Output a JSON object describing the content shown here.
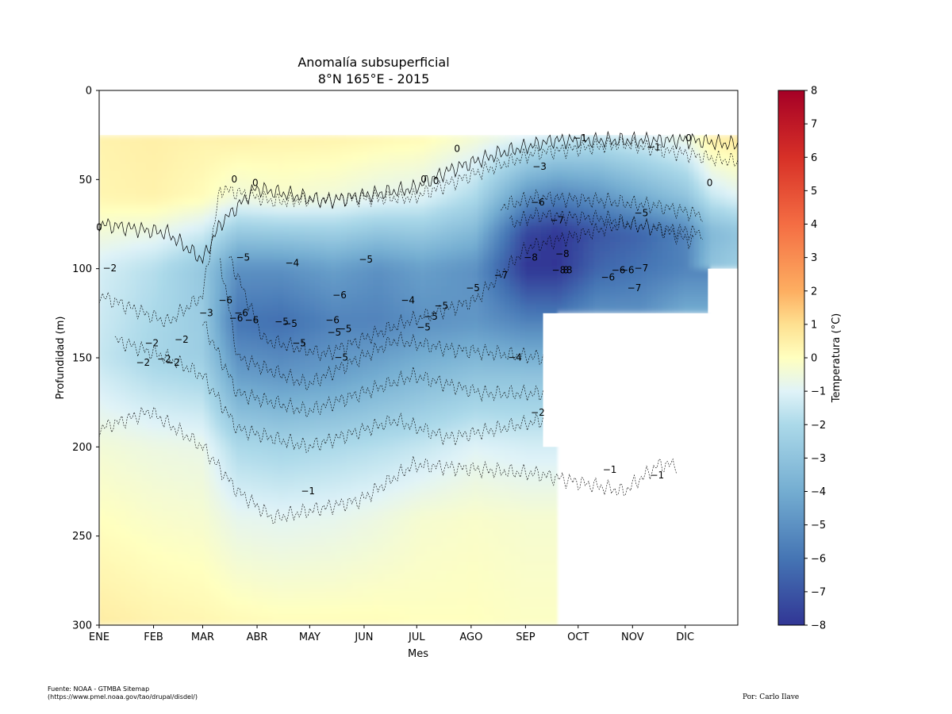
{
  "chart_data": {
    "type": "heatmap",
    "title": "Anomalía subsuperficial",
    "subtitle": "8°N 165°E - 2015",
    "xlabel": "Mes",
    "ylabel": "Profundidad (m)",
    "x_ticks": [
      "ENE",
      "FEB",
      "MAR",
      "ABR",
      "MAY",
      "JUN",
      "JUL",
      "AGO",
      "SEP",
      "OCT",
      "NOV",
      "DIC"
    ],
    "y_ticks": [
      0,
      50,
      100,
      150,
      200,
      250,
      300
    ],
    "ylim": [
      300,
      0
    ],
    "xlim_day": [
      1,
      365
    ],
    "colorbar": {
      "label": "Temperatura (°C)",
      "ticks": [
        8,
        7,
        6,
        5,
        4,
        3,
        2,
        1,
        0,
        -1,
        -2,
        -3,
        -4,
        -5,
        -6,
        -7,
        -8
      ],
      "vmin": -8,
      "vmax": 8,
      "colormap": "RdYlBu_r"
    },
    "field_profiles": [
      {
        "day": 1,
        "depth": [
          25,
          60,
          100,
          150,
          200,
          300
        ],
        "temp": [
          0.4,
          0.3,
          -1.2,
          -1.5,
          -0.4,
          0.6
        ]
      },
      {
        "day": 32,
        "depth": [
          25,
          60,
          100,
          150,
          200,
          300
        ],
        "temp": [
          0.5,
          0.4,
          -1.8,
          -2.2,
          -0.6,
          0.4
        ]
      },
      {
        "day": 60,
        "depth": [
          25,
          60,
          100,
          150,
          200,
          300
        ],
        "temp": [
          0.4,
          0.1,
          -2.8,
          -2.5,
          -0.7,
          0.3
        ]
      },
      {
        "day": 80,
        "depth": [
          25,
          60,
          100,
          130,
          160,
          200,
          240,
          300
        ],
        "temp": [
          0.5,
          -0.5,
          -5.0,
          -6.0,
          -4.5,
          -2.0,
          -0.8,
          0.2
        ]
      },
      {
        "day": 105,
        "depth": [
          25,
          60,
          100,
          130,
          160,
          200,
          240,
          300
        ],
        "temp": [
          0.4,
          -0.3,
          -5.0,
          -6.2,
          -4.8,
          -2.2,
          -0.9,
          0.1
        ]
      },
      {
        "day": 135,
        "depth": [
          25,
          60,
          100,
          130,
          160,
          200,
          240,
          300
        ],
        "temp": [
          0.4,
          -0.5,
          -4.5,
          -5.5,
          -4.5,
          -2.0,
          -0.8,
          0.1
        ]
      },
      {
        "day": 160,
        "depth": [
          25,
          60,
          100,
          130,
          160,
          200,
          240,
          300
        ],
        "temp": [
          0.3,
          -0.8,
          -5.0,
          -5.5,
          -4.0,
          -1.8,
          -0.6,
          0.1
        ]
      },
      {
        "day": 185,
        "depth": [
          25,
          60,
          100,
          130,
          160,
          200,
          240,
          300
        ],
        "temp": [
          0.2,
          -1.0,
          -4.5,
          -5.0,
          -3.5,
          -1.5,
          -0.3,
          0.0
        ]
      },
      {
        "day": 215,
        "depth": [
          25,
          60,
          100,
          130,
          160,
          200,
          240,
          300
        ],
        "temp": [
          -0.3,
          -2.0,
          -5.0,
          -4.8,
          -3.0,
          -1.0,
          -0.2,
          0.0
        ]
      },
      {
        "day": 245,
        "depth": [
          25,
          60,
          80,
          100,
          130,
          160,
          200,
          240,
          300
        ],
        "temp": [
          -0.8,
          -5.0,
          -7.5,
          -8.0,
          -5.5,
          -3.0,
          -1.2,
          -0.3,
          -0.1
        ]
      },
      {
        "day": 262,
        "depth": [
          25,
          60,
          80,
          100,
          125
        ],
        "temp": [
          -1.2,
          -5.5,
          -8.0,
          -8.0,
          -6.0
        ]
      },
      {
        "day": 285,
        "depth": [
          25,
          60,
          80,
          100,
          125
        ],
        "temp": [
          -1.4,
          -5.0,
          -7.0,
          -6.5,
          -5.0
        ]
      },
      {
        "day": 310,
        "depth": [
          25,
          60,
          80,
          100,
          125
        ],
        "temp": [
          -1.0,
          -4.0,
          -6.5,
          -6.0,
          -5.0
        ]
      },
      {
        "day": 335,
        "depth": [
          25,
          60,
          80,
          100,
          125
        ],
        "temp": [
          -0.5,
          -3.0,
          -5.5,
          -5.5,
          -4.0
        ]
      },
      {
        "day": 350,
        "depth": [
          25,
          60,
          80,
          100
        ],
        "temp": [
          0.6,
          -1.5,
          -3.5,
          -3.0
        ]
      },
      {
        "day": 365,
        "depth": [
          25,
          60,
          80,
          100
        ],
        "temp": [
          0.8,
          -1.0,
          -3.0,
          -2.5
        ]
      }
    ],
    "contour_labels": [
      {
        "text": "0",
        "day": 1,
        "depth": 77
      },
      {
        "text": "0",
        "day": 78,
        "depth": 50
      },
      {
        "text": "0",
        "day": 90,
        "depth": 52
      },
      {
        "text": "0",
        "day": 186,
        "depth": 50
      },
      {
        "text": "0",
        "day": 193,
        "depth": 51
      },
      {
        "text": "0",
        "day": 205,
        "depth": 33
      },
      {
        "text": "0",
        "day": 337,
        "depth": 27
      },
      {
        "text": "0",
        "day": 349,
        "depth": 52
      },
      {
        "text": "−1",
        "day": 275,
        "depth": 27
      },
      {
        "text": "−1",
        "day": 317,
        "depth": 32
      },
      {
        "text": "−1",
        "day": 292,
        "depth": 213
      },
      {
        "text": "−1",
        "day": 319,
        "depth": 216
      },
      {
        "text": "−1",
        "day": 120,
        "depth": 225
      },
      {
        "text": "−2",
        "day": 7,
        "depth": 100
      },
      {
        "text": "−2",
        "day": 31,
        "depth": 142
      },
      {
        "text": "−2",
        "day": 26,
        "depth": 153
      },
      {
        "text": "−2",
        "day": 38,
        "depth": 151
      },
      {
        "text": "−2",
        "day": 43,
        "depth": 153
      },
      {
        "text": "−2",
        "day": 48,
        "depth": 140
      },
      {
        "text": "−2",
        "day": 251,
        "depth": 181
      },
      {
        "text": "−3",
        "day": 62,
        "depth": 125
      },
      {
        "text": "−3",
        "day": 252,
        "depth": 43
      },
      {
        "text": "−4",
        "day": 111,
        "depth": 97
      },
      {
        "text": "−4",
        "day": 238,
        "depth": 150
      },
      {
        "text": "−4",
        "day": 177,
        "depth": 118
      },
      {
        "text": "−5",
        "day": 83,
        "depth": 94
      },
      {
        "text": "−5",
        "day": 153,
        "depth": 95
      },
      {
        "text": "−5",
        "day": 105,
        "depth": 130
      },
      {
        "text": "−5",
        "day": 110,
        "depth": 131
      },
      {
        "text": "−5",
        "day": 115,
        "depth": 142
      },
      {
        "text": "−5",
        "day": 135,
        "depth": 136
      },
      {
        "text": "−5",
        "day": 141,
        "depth": 134
      },
      {
        "text": "−5",
        "day": 139,
        "depth": 150
      },
      {
        "text": "−5",
        "day": 190,
        "depth": 127
      },
      {
        "text": "−5",
        "day": 196,
        "depth": 121
      },
      {
        "text": "−5",
        "day": 214,
        "depth": 111
      },
      {
        "text": "−5",
        "day": 310,
        "depth": 69
      },
      {
        "text": "−5",
        "day": 186,
        "depth": 133
      },
      {
        "text": "−6",
        "day": 73,
        "depth": 118
      },
      {
        "text": "−6",
        "day": 82,
        "depth": 125
      },
      {
        "text": "−6",
        "day": 79,
        "depth": 128
      },
      {
        "text": "−6",
        "day": 88,
        "depth": 129
      },
      {
        "text": "−6",
        "day": 138,
        "depth": 115
      },
      {
        "text": "−6",
        "day": 134,
        "depth": 129
      },
      {
        "text": "−6",
        "day": 251,
        "depth": 63
      },
      {
        "text": "−6",
        "day": 291,
        "depth": 105
      },
      {
        "text": "−6",
        "day": 297,
        "depth": 101
      },
      {
        "text": "−6",
        "day": 302,
        "depth": 101
      },
      {
        "text": "−7",
        "day": 230,
        "depth": 104
      },
      {
        "text": "−7",
        "day": 262,
        "depth": 73
      },
      {
        "text": "−7",
        "day": 306,
        "depth": 111
      },
      {
        "text": "−7",
        "day": 310,
        "depth": 100
      },
      {
        "text": "−8",
        "day": 247,
        "depth": 94
      },
      {
        "text": "−8",
        "day": 265,
        "depth": 92
      },
      {
        "text": "−8",
        "day": 263,
        "depth": 101
      },
      {
        "text": "8",
        "day": 267,
        "depth": 101
      },
      {
        "text": "8",
        "day": 269,
        "depth": 101
      }
    ]
  },
  "footer": {
    "source_line1": "Fuente: NOAA - GTMBA Sitemap",
    "source_line2": "(https://www.pmel.noaa.gov/tao/drupal/disdel/)",
    "author": "Por: Carlo Ilave"
  }
}
